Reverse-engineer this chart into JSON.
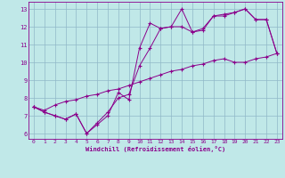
{
  "line1_x": [
    0,
    1,
    2,
    3,
    4,
    5,
    6,
    7,
    8,
    9,
    10,
    11,
    12,
    13,
    14,
    15,
    16,
    17,
    18,
    19,
    20,
    21,
    22,
    23
  ],
  "line1_y": [
    7.5,
    7.2,
    7.0,
    6.8,
    7.1,
    6.0,
    6.5,
    7.0,
    8.3,
    7.9,
    10.8,
    12.2,
    11.9,
    12.0,
    13.0,
    11.7,
    11.8,
    12.6,
    12.7,
    12.8,
    13.0,
    12.4,
    12.4,
    10.5
  ],
  "line2_x": [
    0,
    1,
    2,
    3,
    4,
    5,
    6,
    7,
    8,
    9,
    10,
    11,
    12,
    13,
    14,
    15,
    16,
    17,
    18,
    19,
    20,
    21,
    22,
    23
  ],
  "line2_y": [
    7.5,
    7.2,
    7.0,
    6.8,
    7.1,
    6.0,
    6.6,
    7.2,
    8.0,
    8.2,
    9.8,
    10.8,
    11.9,
    12.0,
    12.0,
    11.7,
    11.9,
    12.6,
    12.6,
    12.8,
    13.0,
    12.4,
    12.4,
    10.5
  ],
  "line3_x": [
    0,
    1,
    2,
    3,
    4,
    5,
    6,
    7,
    8,
    9,
    10,
    11,
    12,
    13,
    14,
    15,
    16,
    17,
    18,
    19,
    20,
    21,
    22,
    23
  ],
  "line3_y": [
    7.5,
    7.3,
    7.6,
    7.8,
    7.9,
    8.1,
    8.2,
    8.4,
    8.5,
    8.7,
    8.9,
    9.1,
    9.3,
    9.5,
    9.6,
    9.8,
    9.9,
    10.1,
    10.2,
    10.0,
    10.0,
    10.2,
    10.3,
    10.5
  ],
  "line_color": "#8b008b",
  "bg_color": "#c0e8e8",
  "grid_color": "#90b8c8",
  "xlabel": "Windchill (Refroidissement éolien,°C)",
  "ylim": [
    5.7,
    13.4
  ],
  "xlim": [
    -0.5,
    23.5
  ],
  "yticks": [
    6,
    7,
    8,
    9,
    10,
    11,
    12,
    13
  ],
  "xticks": [
    0,
    1,
    2,
    3,
    4,
    5,
    6,
    7,
    8,
    9,
    10,
    11,
    12,
    13,
    14,
    15,
    16,
    17,
    18,
    19,
    20,
    21,
    22,
    23
  ]
}
